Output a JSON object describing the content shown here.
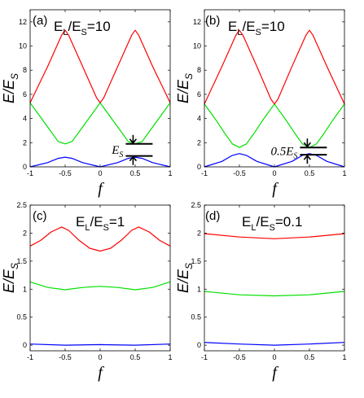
{
  "chart_data": [
    {
      "type": "line",
      "panel_label": "(a)",
      "ratio_label": "E",
      "ratio_sub_l": "L",
      "ratio_mid": "/E",
      "ratio_sub_s": "S",
      "ratio_value": "=10",
      "xlabel": "f",
      "ylabel_main": "E/E",
      "ylabel_sub": "S",
      "xlim": [
        -1,
        1
      ],
      "ylim": [
        0,
        13
      ],
      "xticks": [
        "-1",
        "-0.5",
        "0",
        "0.5",
        "1"
      ],
      "yticks": [
        {
          "v": 0,
          "t": "0"
        },
        {
          "v": 2,
          "t": "2"
        },
        {
          "v": 4,
          "t": "4"
        },
        {
          "v": 6,
          "t": "6"
        },
        {
          "v": 8,
          "t": "8"
        },
        {
          "v": 10,
          "t": "10"
        },
        {
          "v": 12,
          "t": "12"
        }
      ],
      "annotation": {
        "text": "E",
        "sub": "S",
        "y_low": 0.9,
        "y_high": 1.9
      },
      "series": [
        {
          "color": "#0000ff",
          "points": [
            [
              -1,
              0
            ],
            [
              -0.75,
              0.35
            ],
            [
              -0.6,
              0.7
            ],
            [
              -0.5,
              0.8
            ],
            [
              -0.4,
              0.7
            ],
            [
              -0.25,
              0.35
            ],
            [
              0,
              0
            ],
            [
              0.25,
              0.35
            ],
            [
              0.4,
              0.7
            ],
            [
              0.5,
              0.8
            ],
            [
              0.6,
              0.7
            ],
            [
              0.75,
              0.35
            ],
            [
              1,
              0
            ]
          ]
        },
        {
          "color": "#00e000",
          "points": [
            [
              -1,
              5.3
            ],
            [
              -0.85,
              4.1
            ],
            [
              -0.7,
              2.9
            ],
            [
              -0.6,
              2.1
            ],
            [
              -0.5,
              1.9
            ],
            [
              -0.4,
              2.1
            ],
            [
              -0.3,
              2.9
            ],
            [
              -0.15,
              4.1
            ],
            [
              0,
              5.3
            ],
            [
              0.15,
              4.1
            ],
            [
              0.3,
              2.9
            ],
            [
              0.4,
              2.1
            ],
            [
              0.5,
              1.9
            ],
            [
              0.6,
              2.1
            ],
            [
              0.7,
              2.9
            ],
            [
              0.85,
              4.1
            ],
            [
              1,
              5.3
            ]
          ]
        },
        {
          "color": "#ff0000",
          "points": [
            [
              -1,
              5.3
            ],
            [
              -0.75,
              8.3
            ],
            [
              -0.55,
              10.9
            ],
            [
              -0.5,
              11.3
            ],
            [
              -0.45,
              10.9
            ],
            [
              -0.25,
              8.3
            ],
            [
              -0.05,
              5.7
            ],
            [
              0,
              5.3
            ],
            [
              0.05,
              5.7
            ],
            [
              0.25,
              8.3
            ],
            [
              0.45,
              10.9
            ],
            [
              0.5,
              11.3
            ],
            [
              0.55,
              10.9
            ],
            [
              0.75,
              8.3
            ],
            [
              1,
              5.3
            ]
          ]
        }
      ]
    },
    {
      "type": "line",
      "panel_label": "(b)",
      "ratio_label": "E",
      "ratio_sub_l": "L",
      "ratio_mid": "/E",
      "ratio_sub_s": "S",
      "ratio_value": "=10",
      "xlabel": "f",
      "ylabel_main": "E/E",
      "ylabel_sub": "S",
      "xlim": [
        -1,
        1
      ],
      "ylim": [
        0,
        13
      ],
      "xticks": [
        "-1",
        "-0.5",
        "0",
        "0.5",
        "1"
      ],
      "yticks": [
        {
          "v": 0,
          "t": "0"
        },
        {
          "v": 2,
          "t": "2"
        },
        {
          "v": 4,
          "t": "4"
        },
        {
          "v": 6,
          "t": "6"
        },
        {
          "v": 8,
          "t": "8"
        },
        {
          "v": 10,
          "t": "10"
        },
        {
          "v": 12,
          "t": "12"
        }
      ],
      "annotation": {
        "text": "0.5E",
        "sub": "S",
        "y_low": 1.0,
        "y_high": 1.6
      },
      "series": [
        {
          "color": "#0000ff",
          "points": [
            [
              -1,
              0
            ],
            [
              -0.75,
              0.45
            ],
            [
              -0.6,
              0.95
            ],
            [
              -0.5,
              1.1
            ],
            [
              -0.4,
              0.95
            ],
            [
              -0.25,
              0.45
            ],
            [
              0,
              0
            ],
            [
              0.25,
              0.45
            ],
            [
              0.4,
              0.95
            ],
            [
              0.5,
              1.1
            ],
            [
              0.6,
              0.95
            ],
            [
              0.75,
              0.45
            ],
            [
              1,
              0
            ]
          ]
        },
        {
          "color": "#00e000",
          "points": [
            [
              -1,
              5.2
            ],
            [
              -0.85,
              4.0
            ],
            [
              -0.7,
              2.7
            ],
            [
              -0.6,
              1.9
            ],
            [
              -0.5,
              1.6
            ],
            [
              -0.4,
              1.9
            ],
            [
              -0.3,
              2.7
            ],
            [
              -0.15,
              4.0
            ],
            [
              0,
              5.2
            ],
            [
              0.15,
              4.0
            ],
            [
              0.3,
              2.7
            ],
            [
              0.4,
              1.9
            ],
            [
              0.5,
              1.6
            ],
            [
              0.6,
              1.9
            ],
            [
              0.7,
              2.7
            ],
            [
              0.85,
              4.0
            ],
            [
              1,
              5.2
            ]
          ]
        },
        {
          "color": "#ff0000",
          "points": [
            [
              -1,
              5.2
            ],
            [
              -0.75,
              8.3
            ],
            [
              -0.55,
              10.9
            ],
            [
              -0.5,
              11.3
            ],
            [
              -0.45,
              10.9
            ],
            [
              -0.25,
              8.3
            ],
            [
              -0.05,
              5.6
            ],
            [
              0,
              5.2
            ],
            [
              0.05,
              5.6
            ],
            [
              0.25,
              8.3
            ],
            [
              0.45,
              10.9
            ],
            [
              0.5,
              11.3
            ],
            [
              0.55,
              10.9
            ],
            [
              0.75,
              8.3
            ],
            [
              1,
              5.2
            ]
          ]
        }
      ]
    },
    {
      "type": "line",
      "panel_label": "(c)",
      "ratio_label": "E",
      "ratio_sub_l": "L",
      "ratio_mid": "/E",
      "ratio_sub_s": "S",
      "ratio_value": "=1",
      "xlabel": "f",
      "ylabel_main": "E/E",
      "ylabel_sub": "S",
      "xlim": [
        -1,
        1
      ],
      "ylim": [
        -0.1,
        2.5
      ],
      "xticks": [
        "-1",
        "-0.5",
        "0",
        "0.5",
        "1"
      ],
      "yticks": [
        {
          "v": 0,
          "t": "0"
        },
        {
          "v": 0.5,
          "t": "0.5"
        },
        {
          "v": 1,
          "t": "1"
        },
        {
          "v": 1.5,
          "t": "1.5"
        },
        {
          "v": 2,
          "t": "2"
        },
        {
          "v": 2.5,
          "t": "2.5"
        }
      ],
      "series": [
        {
          "color": "#0000ff",
          "points": [
            [
              -1,
              0.02
            ],
            [
              -0.5,
              0.0
            ],
            [
              0,
              0.01
            ],
            [
              0.5,
              0.0
            ],
            [
              1,
              0.02
            ]
          ]
        },
        {
          "color": "#00e000",
          "points": [
            [
              -1,
              1.13
            ],
            [
              -0.75,
              1.03
            ],
            [
              -0.5,
              0.99
            ],
            [
              -0.25,
              1.03
            ],
            [
              0,
              1.05
            ],
            [
              0.25,
              1.03
            ],
            [
              0.5,
              0.99
            ],
            [
              0.75,
              1.03
            ],
            [
              1,
              1.13
            ]
          ]
        },
        {
          "color": "#ff0000",
          "points": [
            [
              -1,
              1.77
            ],
            [
              -0.85,
              1.87
            ],
            [
              -0.7,
              2.02
            ],
            [
              -0.55,
              2.11
            ],
            [
              -0.45,
              2.05
            ],
            [
              -0.3,
              1.87
            ],
            [
              -0.15,
              1.73
            ],
            [
              0,
              1.68
            ],
            [
              0.15,
              1.73
            ],
            [
              0.3,
              1.87
            ],
            [
              0.45,
              2.05
            ],
            [
              0.55,
              2.11
            ],
            [
              0.7,
              2.02
            ],
            [
              0.85,
              1.87
            ],
            [
              1,
              1.77
            ]
          ]
        }
      ]
    },
    {
      "type": "line",
      "panel_label": "(d)",
      "ratio_label": "E",
      "ratio_sub_l": "L",
      "ratio_mid": "/E",
      "ratio_sub_s": "S",
      "ratio_value": "=0.1",
      "xlabel": "f",
      "ylabel_main": "E/E",
      "ylabel_sub": "S",
      "xlim": [
        -1,
        1
      ],
      "ylim": [
        -0.1,
        2.5
      ],
      "xticks": [
        "-1",
        "-0.5",
        "0",
        "0.5",
        "1"
      ],
      "yticks": [
        {
          "v": 0,
          "t": "0"
        },
        {
          "v": 0.5,
          "t": "0.5"
        },
        {
          "v": 1,
          "t": "1"
        },
        {
          "v": 1.5,
          "t": "1.5"
        },
        {
          "v": 2,
          "t": "2"
        },
        {
          "v": 2.5,
          "t": "2.5"
        }
      ],
      "series": [
        {
          "color": "#0000ff",
          "points": [
            [
              -1,
              0.05
            ],
            [
              -0.5,
              0.02
            ],
            [
              0,
              0.0
            ],
            [
              0.5,
              0.02
            ],
            [
              1,
              0.05
            ]
          ]
        },
        {
          "color": "#00e000",
          "points": [
            [
              -1,
              0.96
            ],
            [
              -0.5,
              0.9
            ],
            [
              0,
              0.88
            ],
            [
              0.5,
              0.9
            ],
            [
              1,
              0.96
            ]
          ]
        },
        {
          "color": "#ff0000",
          "points": [
            [
              -1,
              1.99
            ],
            [
              -0.5,
              1.93
            ],
            [
              0,
              1.9
            ],
            [
              0.5,
              1.93
            ],
            [
              1,
              1.99
            ]
          ]
        }
      ]
    }
  ]
}
